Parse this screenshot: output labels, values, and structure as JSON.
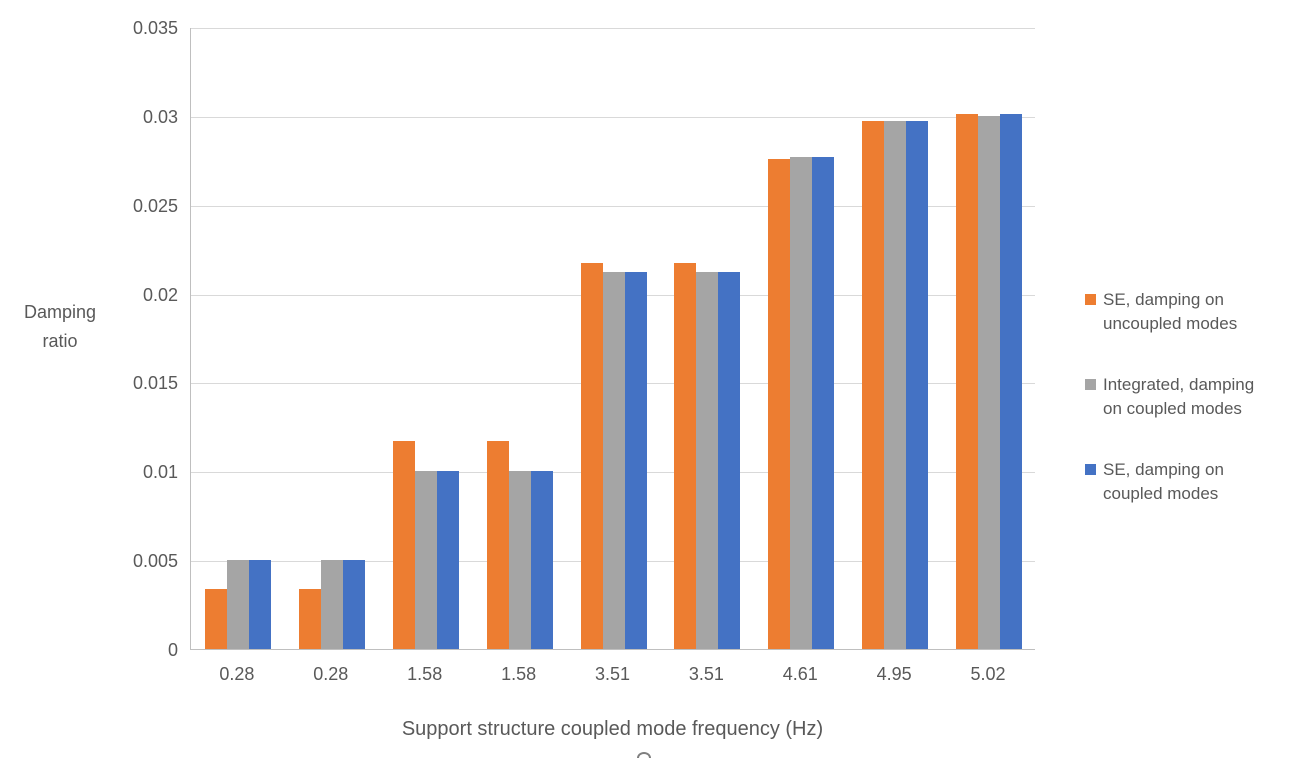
{
  "chart_data": {
    "type": "bar",
    "title": "",
    "xlabel": "Support structure coupled mode frequency (Hz)",
    "ylabel": "Damping ratio",
    "categories": [
      "0.28",
      "0.28",
      "1.58",
      "1.58",
      "3.51",
      "3.51",
      "4.61",
      "4.95",
      "5.02"
    ],
    "series": [
      {
        "name": "SE, damping on uncoupled modes",
        "legend_lines": [
          "SE, damping on",
          "uncoupled modes"
        ],
        "color": "#ED7D31",
        "values": [
          0.0034,
          0.0034,
          0.0117,
          0.0117,
          0.0217,
          0.0217,
          0.0276,
          0.0297,
          0.0301
        ]
      },
      {
        "name": "Integrated, damping on coupled modes",
        "legend_lines": [
          "Integrated, damping",
          "on coupled modes"
        ],
        "color": "#A5A5A5",
        "values": [
          0.005,
          0.005,
          0.01,
          0.01,
          0.0212,
          0.0212,
          0.0277,
          0.0297,
          0.03
        ]
      },
      {
        "name": "SE, damping on coupled modes",
        "legend_lines": [
          "SE, damping on",
          "coupled modes"
        ],
        "color": "#4472C4",
        "values": [
          0.005,
          0.005,
          0.01,
          0.01,
          0.0212,
          0.0212,
          0.0277,
          0.0297,
          0.0301
        ]
      }
    ],
    "ylim": [
      0,
      0.035
    ],
    "yticks": [
      0,
      0.005,
      0.01,
      0.015,
      0.02,
      0.025,
      0.03,
      0.035
    ],
    "ytick_labels": [
      "0",
      "0.005",
      "0.01",
      "0.015",
      "0.02",
      "0.025",
      "0.03",
      "0.035"
    ],
    "grid": true,
    "legend_position": "right"
  },
  "colors": {
    "text": "#595959",
    "axis": "#BFBFBF",
    "grid": "#D9D9D9",
    "background": "#FFFFFF",
    "orange": "#ED7D31",
    "gray": "#A5A5A5",
    "blue": "#4472C4"
  }
}
